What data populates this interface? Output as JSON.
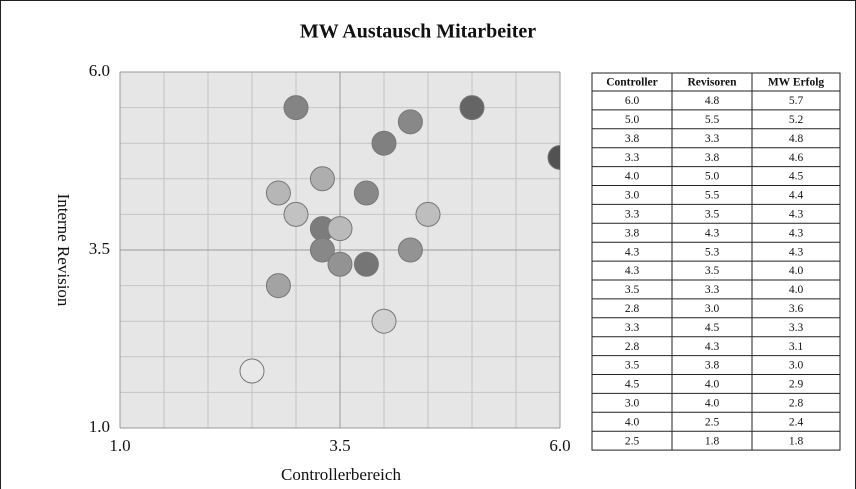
{
  "chart_data": {
    "type": "bubble",
    "title": "MW Austausch Mitarbeiter",
    "xlabel": "Controllerbereich",
    "ylabel": "Interne Revision",
    "x": [
      6.0,
      5.0,
      3.8,
      3.3,
      4.0,
      3.0,
      3.3,
      3.8,
      4.3,
      4.3,
      3.5,
      2.8,
      3.3,
      2.8,
      3.5,
      4.5,
      3.0,
      4.0,
      2.5
    ],
    "values": [
      4.8,
      5.5,
      3.3,
      3.8,
      5.0,
      5.5,
      3.5,
      4.3,
      5.3,
      3.5,
      3.3,
      3.0,
      4.5,
      4.3,
      3.8,
      4.0,
      4.0,
      2.5,
      1.8
    ],
    "sizes": [
      5.7,
      5.2,
      4.8,
      4.6,
      4.5,
      4.4,
      4.3,
      4.3,
      4.3,
      4.0,
      4.0,
      3.6,
      3.3,
      3.1,
      3.0,
      2.9,
      2.8,
      2.4,
      1.8
    ],
    "xlim": [
      1.0,
      6.0
    ],
    "ylim": [
      1.0,
      6.0
    ],
    "xticks": [
      {
        "value": 1.0,
        "label": "1.0"
      },
      {
        "value": 3.5,
        "label": "3.5"
      },
      {
        "value": 6.0,
        "label": "6.0"
      }
    ],
    "yticks": [
      {
        "value": 1.0,
        "label": "1.0"
      },
      {
        "value": 3.5,
        "label": "3.5"
      },
      {
        "value": 6.0,
        "label": "6.0"
      }
    ],
    "grid": true,
    "minor_grid": true
  },
  "table": {
    "columns": [
      "Controller",
      "Revisoren",
      "MW Erfolg"
    ],
    "rows": [
      [
        "6.0",
        "4.8",
        "5.7"
      ],
      [
        "5.0",
        "5.5",
        "5.2"
      ],
      [
        "3.8",
        "3.3",
        "4.8"
      ],
      [
        "3.3",
        "3.8",
        "4.6"
      ],
      [
        "4.0",
        "5.0",
        "4.5"
      ],
      [
        "3.0",
        "5.5",
        "4.4"
      ],
      [
        "3.3",
        "3.5",
        "4.3"
      ],
      [
        "3.8",
        "4.3",
        "4.3"
      ],
      [
        "4.3",
        "5.3",
        "4.3"
      ],
      [
        "4.3",
        "3.5",
        "4.0"
      ],
      [
        "3.5",
        "3.3",
        "4.0"
      ],
      [
        "2.8",
        "3.0",
        "3.6"
      ],
      [
        "3.3",
        "4.5",
        "3.3"
      ],
      [
        "2.8",
        "4.3",
        "3.1"
      ],
      [
        "3.5",
        "3.8",
        "3.0"
      ],
      [
        "4.5",
        "4.0",
        "2.9"
      ],
      [
        "3.0",
        "4.0",
        "2.8"
      ],
      [
        "4.0",
        "2.5",
        "2.4"
      ],
      [
        "2.5",
        "1.8",
        "1.8"
      ]
    ]
  }
}
